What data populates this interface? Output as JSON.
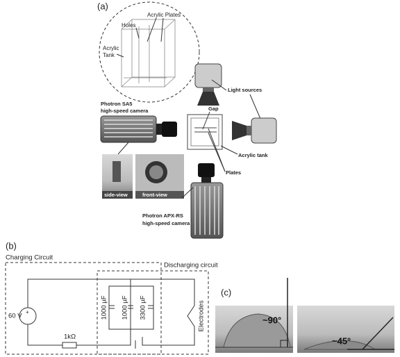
{
  "panel_a": {
    "label": "(a)",
    "acrylic_plates": "Acrylic Plates",
    "holes": "Holes",
    "acrylic_tank_3d": [
      "Acrylic",
      "Tank"
    ],
    "light_sources": "Light sources",
    "camera_sa5": [
      "Photron SA5",
      "high-speed camera"
    ],
    "gap": "Gap",
    "acrylic_tank": "Acrylic tank",
    "plates": "Plates",
    "side_view": "side-view",
    "front_view": "front-view",
    "camera_apx": [
      "Photron APX-RS",
      "high-speed camera"
    ]
  },
  "panel_b": {
    "label": "(b)",
    "charging": "Charging Circuit",
    "discharging": "Discharging circuit",
    "voltage": "60 V",
    "capacitors": [
      "1000 µF",
      "1000 µF",
      "3300 µF"
    ],
    "electrodes": "Electrodes",
    "resistor": "1kΩ"
  },
  "panel_c": {
    "label": "(c)",
    "angle_1": "~90°",
    "angle_2": "~45°"
  }
}
